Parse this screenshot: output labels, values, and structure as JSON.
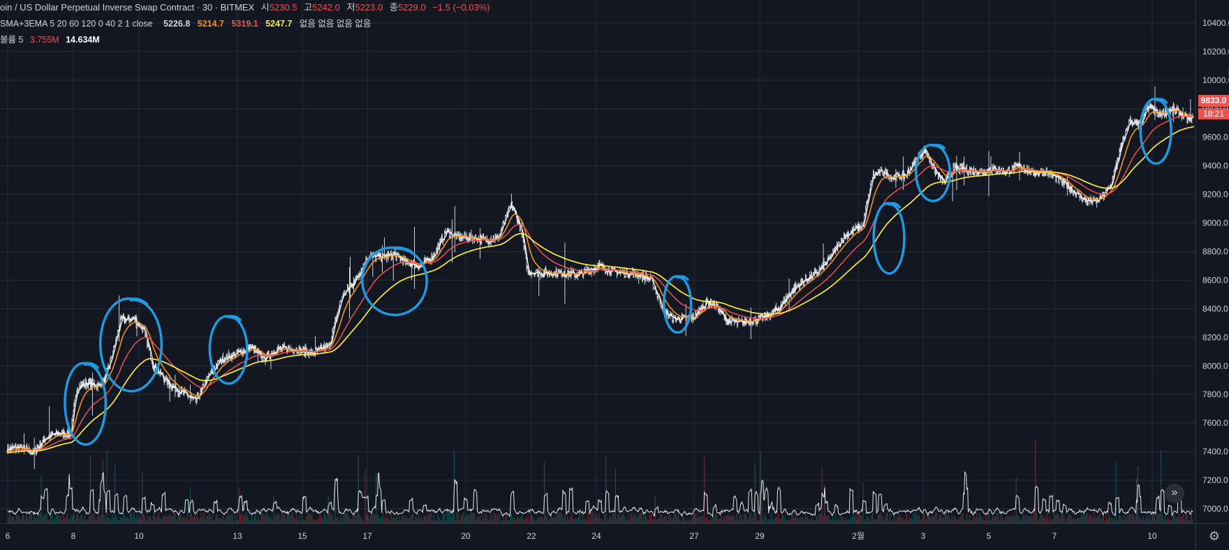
{
  "header": {
    "title": "oin / US Dollar Perpetual Inverse Swap Contract · 30 · BITMEX",
    "open_label": "시",
    "open": "5230.5",
    "high_label": "고",
    "high": "5242.0",
    "low_label": "저",
    "low": "5223.0",
    "close_label": "종",
    "close": "5229.0",
    "change": "−1.5 (−0.03%)"
  },
  "indicator_ma": {
    "label": "SMA+3EMA 5 20 60 120 0 40 2 1 close",
    "values": [
      "5226.8",
      "5214.7",
      "5319.1",
      "5247.7"
    ],
    "colors": [
      "#ffffff",
      "#f7931a",
      "#ef5350",
      "#ffeb3b"
    ],
    "empty_values": [
      "없음",
      "없음",
      "없음",
      "없음"
    ]
  },
  "indicator_volume": {
    "label": "볼륨 5",
    "values": [
      "3.755M",
      "14.634M"
    ],
    "colors": [
      "#ef5350",
      "#ffffff"
    ]
  },
  "price_tag": "9833.0",
  "countdown_tag": "18:21",
  "icons": {
    "scroll_right": "double-chevron-right-icon",
    "settings": "gear-icon"
  },
  "colors": {
    "background": "#131722",
    "grid": "#2a2e39",
    "candle": "#ffffff",
    "sma5": "#ffffff",
    "ema20": "#f7931a",
    "ema60": "#ef5350",
    "ema120": "#ffeb3b",
    "annotation": "#1e9be0",
    "volume_up": "#26a69a",
    "volume_down": "#ef5350"
  },
  "chart_data": {
    "type": "line",
    "title": "oin / US Dollar Perpetual Inverse Swap Contract · 30 · BITMEX",
    "y_ticks": [
      7000,
      7200,
      7400,
      7600,
      7800,
      8000,
      8200,
      8400,
      8600,
      8800,
      9000,
      9200,
      9400,
      9600,
      9800,
      10000,
      10200,
      10400
    ],
    "y_tick_labels": [
      "7000.0",
      "7200.0",
      "7400.0",
      "7600.0",
      "7800.0",
      "8000.0",
      "8200.0",
      "8400.0",
      "8600.0",
      "8800.0",
      "9000.0",
      "9200.0",
      "9400.0",
      "9600.0",
      "9800.0",
      "10000.0",
      "10200.0",
      "10400.0"
    ],
    "ylim": [
      6890,
      10490
    ],
    "x_tick_labels": [
      "6",
      "8",
      "10",
      "13",
      "15",
      "17",
      "20",
      "22",
      "24",
      "27",
      "29",
      "2월",
      "3",
      "5",
      "7",
      "10"
    ],
    "x_tick_days": [
      0,
      2,
      4,
      6,
      8,
      10,
      13,
      15,
      17,
      19,
      21,
      23,
      24,
      26,
      28,
      31
    ],
    "xlim_days": [
      0,
      36.8
    ],
    "price_path": [
      {
        "d": 0,
        "p": 7420
      },
      {
        "d": 0.4,
        "p": 7430
      },
      {
        "d": 0.8,
        "p": 7390
      },
      {
        "d": 1.2,
        "p": 7500
      },
      {
        "d": 1.6,
        "p": 7530
      },
      {
        "d": 1.95,
        "p": 7520
      },
      {
        "d": 2.15,
        "p": 7850
      },
      {
        "d": 2.4,
        "p": 7880
      },
      {
        "d": 2.8,
        "p": 7860
      },
      {
        "d": 3.0,
        "p": 7900
      },
      {
        "d": 3.2,
        "p": 8050
      },
      {
        "d": 3.5,
        "p": 8320
      },
      {
        "d": 3.9,
        "p": 8330
      },
      {
        "d": 4.2,
        "p": 8250
      },
      {
        "d": 4.5,
        "p": 8000
      },
      {
        "d": 5.0,
        "p": 7870
      },
      {
        "d": 5.5,
        "p": 7800
      },
      {
        "d": 5.8,
        "p": 7750
      },
      {
        "d": 6.2,
        "p": 7930
      },
      {
        "d": 6.6,
        "p": 8050
      },
      {
        "d": 7.0,
        "p": 8080
      },
      {
        "d": 7.5,
        "p": 8130
      },
      {
        "d": 7.9,
        "p": 8050
      },
      {
        "d": 8.3,
        "p": 8120
      },
      {
        "d": 8.8,
        "p": 8120
      },
      {
        "d": 9.4,
        "p": 8090
      },
      {
        "d": 9.9,
        "p": 8140
      },
      {
        "d": 10.3,
        "p": 8490
      },
      {
        "d": 10.7,
        "p": 8600
      },
      {
        "d": 11.1,
        "p": 8770
      },
      {
        "d": 11.5,
        "p": 8760
      },
      {
        "d": 11.9,
        "p": 8780
      },
      {
        "d": 12.3,
        "p": 8720
      },
      {
        "d": 12.7,
        "p": 8700
      },
      {
        "d": 13.1,
        "p": 8770
      },
      {
        "d": 13.5,
        "p": 8940
      },
      {
        "d": 13.9,
        "p": 8900
      },
      {
        "d": 14.3,
        "p": 8900
      },
      {
        "d": 14.7,
        "p": 8880
      },
      {
        "d": 15.1,
        "p": 8900
      },
      {
        "d": 15.5,
        "p": 9130
      },
      {
        "d": 15.8,
        "p": 8960
      },
      {
        "d": 16.0,
        "p": 8660
      },
      {
        "d": 16.5,
        "p": 8650
      },
      {
        "d": 17.0,
        "p": 8650
      },
      {
        "d": 17.6,
        "p": 8640
      },
      {
        "d": 18.2,
        "p": 8700
      },
      {
        "d": 18.6,
        "p": 8660
      },
      {
        "d": 19.0,
        "p": 8650
      },
      {
        "d": 19.4,
        "p": 8640
      },
      {
        "d": 19.8,
        "p": 8600
      },
      {
        "d": 20.2,
        "p": 8380
      },
      {
        "d": 20.5,
        "p": 8330
      },
      {
        "d": 20.8,
        "p": 8330
      },
      {
        "d": 21.1,
        "p": 8340
      },
      {
        "d": 21.5,
        "p": 8450
      },
      {
        "d": 21.8,
        "p": 8420
      },
      {
        "d": 22.1,
        "p": 8320
      },
      {
        "d": 22.5,
        "p": 8300
      },
      {
        "d": 22.9,
        "p": 8320
      },
      {
        "d": 23.3,
        "p": 8340
      },
      {
        "d": 23.7,
        "p": 8400
      },
      {
        "d": 24.1,
        "p": 8520
      },
      {
        "d": 24.5,
        "p": 8600
      },
      {
        "d": 24.9,
        "p": 8650
      },
      {
        "d": 25.3,
        "p": 8760
      },
      {
        "d": 25.7,
        "p": 8900
      },
      {
        "d": 26.0,
        "p": 8950
      },
      {
        "d": 26.3,
        "p": 8980
      },
      {
        "d": 26.6,
        "p": 9330
      },
      {
        "d": 26.9,
        "p": 9360
      },
      {
        "d": 27.2,
        "p": 9320
      },
      {
        "d": 27.6,
        "p": 9330
      },
      {
        "d": 27.9,
        "p": 9430
      },
      {
        "d": 28.2,
        "p": 9520
      },
      {
        "d": 28.5,
        "p": 9370
      },
      {
        "d": 28.8,
        "p": 9280
      },
      {
        "d": 29.1,
        "p": 9380
      },
      {
        "d": 29.5,
        "p": 9370
      },
      {
        "d": 29.9,
        "p": 9360
      },
      {
        "d": 30.3,
        "p": 9380
      },
      {
        "d": 30.7,
        "p": 9360
      },
      {
        "d": 31.1,
        "p": 9400
      },
      {
        "d": 31.5,
        "p": 9350
      },
      {
        "d": 31.9,
        "p": 9360
      },
      {
        "d": 32.3,
        "p": 9310
      },
      {
        "d": 32.7,
        "p": 9240
      },
      {
        "d": 33.1,
        "p": 9160
      },
      {
        "d": 33.5,
        "p": 9150
      },
      {
        "d": 33.9,
        "p": 9250
      },
      {
        "d": 34.2,
        "p": 9500
      },
      {
        "d": 34.5,
        "p": 9720
      },
      {
        "d": 34.8,
        "p": 9680
      },
      {
        "d": 35.1,
        "p": 9820
      },
      {
        "d": 35.4,
        "p": 9760
      },
      {
        "d": 35.7,
        "p": 9790
      },
      {
        "d": 36.0,
        "p": 9780
      },
      {
        "d": 36.3,
        "p": 9720
      },
      {
        "d": 36.6,
        "p": 9760
      },
      {
        "d": 36.9,
        "p": 9850
      },
      {
        "d": 37.2,
        "p": 9900
      },
      {
        "d": 37.5,
        "p": 10000
      },
      {
        "d": 37.8,
        "p": 10150
      },
      {
        "d": 38.1,
        "p": 10100
      },
      {
        "d": 38.4,
        "p": 10150
      },
      {
        "d": 38.7,
        "p": 10080
      },
      {
        "d": 39.0,
        "p": 9850
      },
      {
        "d": 39.3,
        "p": 9830
      },
      {
        "d": 39.6,
        "p": 9900
      },
      {
        "d": 39.9,
        "p": 9830
      }
    ],
    "series": [
      {
        "values_ref": "price_path",
        "period": 5,
        "type": "sma"
      },
      {
        "values_ref": "price_path",
        "period": 20,
        "type": "ema"
      },
      {
        "values_ref": "price_path",
        "period": 60,
        "type": "ema"
      },
      {
        "values_ref": "price_path",
        "period": 120,
        "type": "ema"
      }
    ],
    "annotations": [
      {
        "shape": "loop",
        "center_day": 2.4,
        "center_price": 7720,
        "half_width_days": 0.6,
        "half_height_price": 290
      },
      {
        "shape": "loop",
        "center_day": 3.8,
        "center_price": 8130,
        "half_width_days": 0.9,
        "half_height_price": 330
      },
      {
        "shape": "loop",
        "center_day": 6.8,
        "center_price": 8100,
        "half_width_days": 0.55,
        "half_height_price": 240
      },
      {
        "shape": "loop",
        "center_day": 11.9,
        "center_price": 8580,
        "half_width_days": 0.95,
        "half_height_price": 240
      },
      {
        "shape": "loop",
        "center_day": 20.6,
        "center_price": 8420,
        "half_width_days": 0.4,
        "half_height_price": 200
      },
      {
        "shape": "loop",
        "center_day": 27.1,
        "center_price": 8880,
        "half_width_days": 0.45,
        "half_height_price": 250
      },
      {
        "shape": "loop",
        "center_day": 28.45,
        "center_price": 9340,
        "half_width_days": 0.5,
        "half_height_price": 200
      },
      {
        "shape": "loop",
        "center_day": 35.3,
        "center_price": 9630,
        "half_width_days": 0.45,
        "half_height_price": 230
      },
      {
        "shape": "loop",
        "center_day": 38.2,
        "center_price": 10040,
        "half_width_days": 0.6,
        "half_height_price": 200
      }
    ]
  }
}
